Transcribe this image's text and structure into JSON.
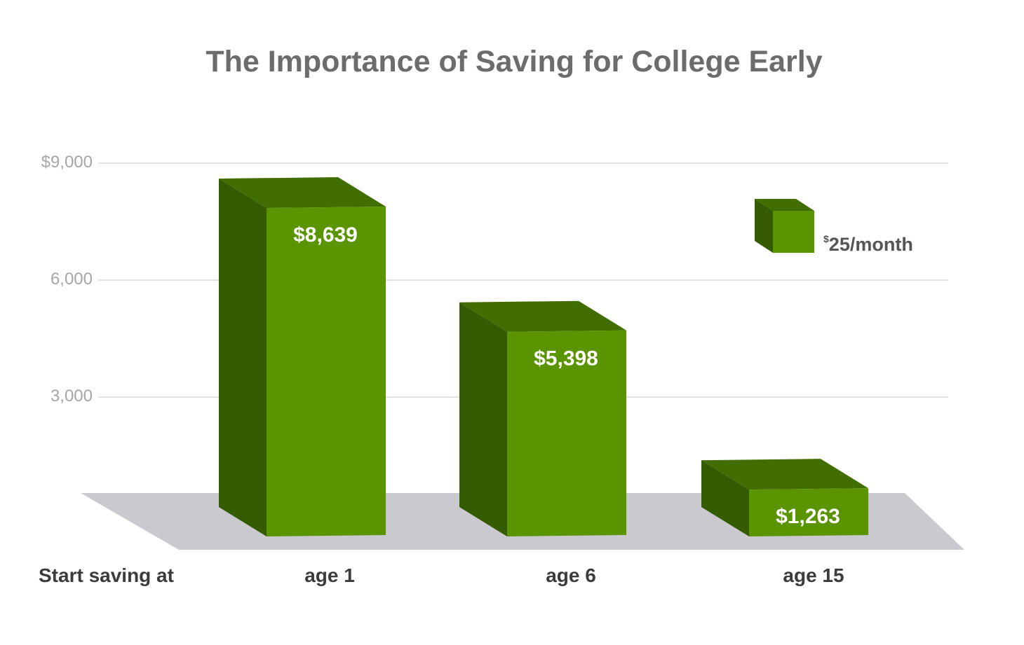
{
  "chart_data": {
    "type": "bar",
    "title": "The Importance of Saving for College Early",
    "xlabel": "Start saving at",
    "ylabel": "",
    "categories": [
      "age 1",
      "age 6",
      "age 15"
    ],
    "series": [
      {
        "name": "$25/month",
        "values": [
          8639,
          5398,
          1263
        ],
        "labels": [
          "$8,639",
          "$5,398",
          "$1,263"
        ]
      }
    ],
    "yticks": [
      3000,
      6000,
      9000
    ],
    "ytick_labels": [
      "3,000",
      "6,000",
      "$9,000"
    ],
    "ylim": [
      0,
      9000
    ],
    "grid": true,
    "legend": {
      "position": "top-right",
      "currency_symbol": "$",
      "text": "25/month"
    },
    "colors": {
      "bar_front": "#5a9400",
      "bar_side": "#355b00",
      "bar_top": "#426d00",
      "floor": "#cbc9d0",
      "gridline": "#d8d8d8",
      "title": "#6c6c6c",
      "tick": "#a6a6a6",
      "category": "#3c3c3c",
      "value_label": "#ffffff",
      "legend_text": "#555555"
    }
  }
}
